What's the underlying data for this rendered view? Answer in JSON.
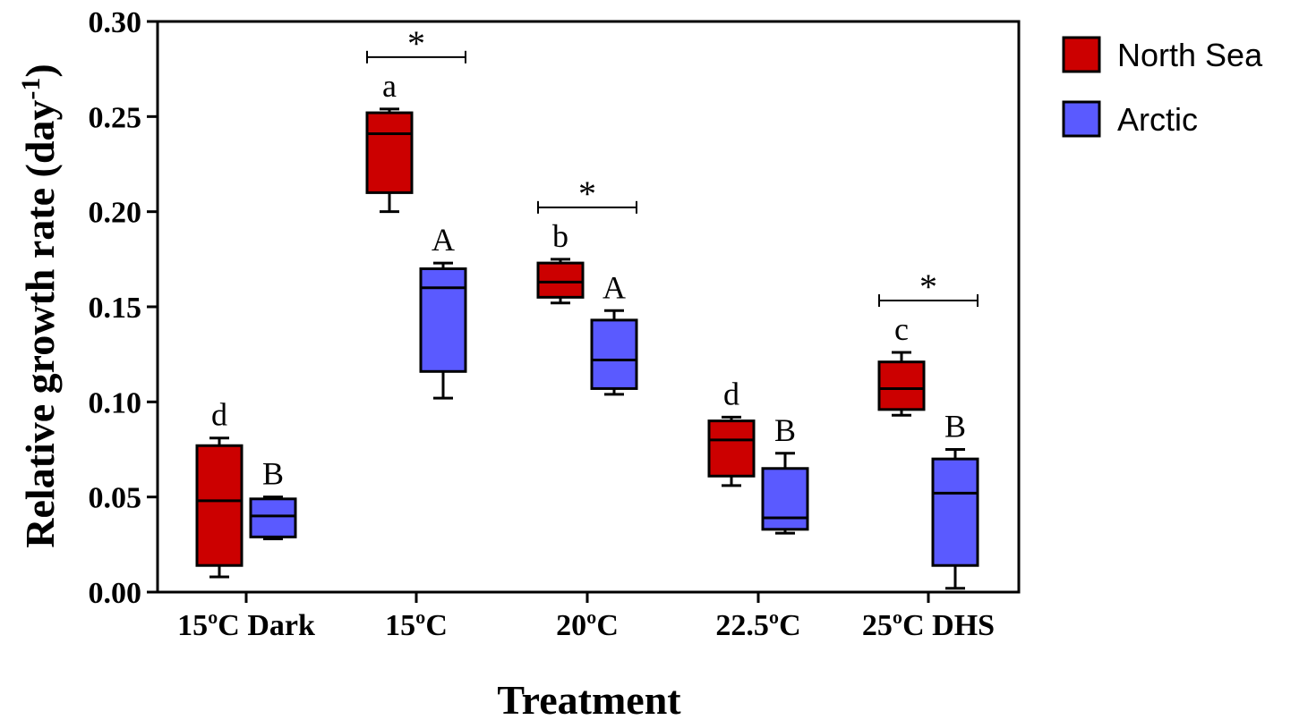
{
  "chart_data": {
    "type": "box",
    "xlabel": "Treatment",
    "ylabel": "Relative growth rate (day",
    "ylabel_superscript": "-1",
    "ylabel_close": ")",
    "ylim": [
      0.0,
      0.3
    ],
    "yticks": [
      0.0,
      0.05,
      0.1,
      0.15,
      0.2,
      0.25,
      0.3
    ],
    "ytick_labels": [
      "0.00",
      "0.05",
      "0.10",
      "0.15",
      "0.20",
      "0.25",
      "0.30"
    ],
    "grid": false,
    "legend_position": "right",
    "categories": [
      "15ºC Dark",
      "15ºC",
      "20ºC",
      "22.5ºC",
      "25ºC DHS"
    ],
    "series": [
      {
        "name": "North Sea",
        "color": "#cc0000",
        "boxes": [
          {
            "min": 0.008,
            "q1": 0.014,
            "median": 0.048,
            "q3": 0.077,
            "max": 0.081
          },
          {
            "min": 0.2,
            "q1": 0.21,
            "median": 0.241,
            "q3": 0.252,
            "max": 0.254
          },
          {
            "min": 0.152,
            "q1": 0.155,
            "median": 0.163,
            "q3": 0.173,
            "max": 0.175
          },
          {
            "min": 0.056,
            "q1": 0.061,
            "median": 0.08,
            "q3": 0.09,
            "max": 0.092
          },
          {
            "min": 0.093,
            "q1": 0.096,
            "median": 0.107,
            "q3": 0.121,
            "max": 0.126
          }
        ],
        "letters": [
          "d",
          "a",
          "b",
          "d",
          "c"
        ]
      },
      {
        "name": "Arctic",
        "color": "#5a5aff",
        "boxes": [
          {
            "min": 0.028,
            "q1": 0.029,
            "median": 0.04,
            "q3": 0.049,
            "max": 0.05
          },
          {
            "min": 0.102,
            "q1": 0.116,
            "median": 0.16,
            "q3": 0.17,
            "max": 0.173
          },
          {
            "min": 0.104,
            "q1": 0.107,
            "median": 0.122,
            "q3": 0.143,
            "max": 0.148
          },
          {
            "min": 0.031,
            "q1": 0.033,
            "median": 0.039,
            "q3": 0.065,
            "max": 0.073
          },
          {
            "min": 0.002,
            "q1": 0.014,
            "median": 0.052,
            "q3": 0.07,
            "max": 0.075
          }
        ],
        "letters": [
          "B",
          "A",
          "A",
          "B",
          "B"
        ]
      }
    ],
    "significance": [
      {
        "category_index": 1,
        "label": "*"
      },
      {
        "category_index": 2,
        "label": "*"
      },
      {
        "category_index": 4,
        "label": "*"
      }
    ]
  }
}
